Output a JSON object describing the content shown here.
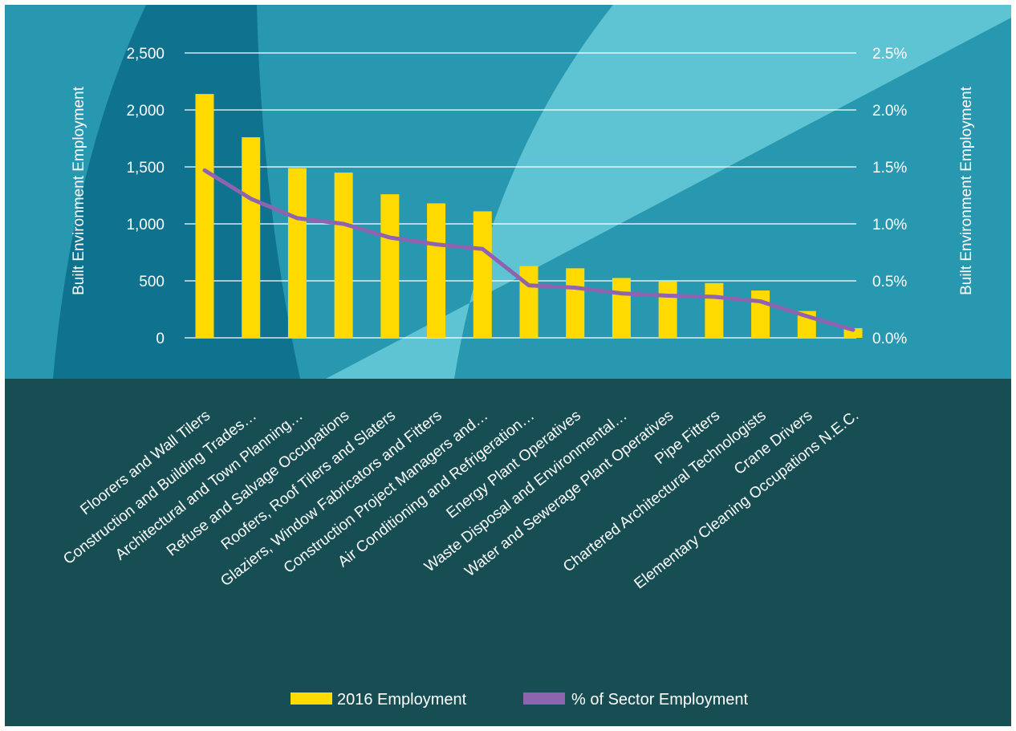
{
  "colors": {
    "plot_background": "#2798B0",
    "lower_background": "#164E54",
    "dark_band": "#0F7390",
    "light_band": "#5EC4D3",
    "bar": "#FFDA00",
    "line": "#8E63B0",
    "gridline": "#FFFFFF",
    "text": "#FFFFFF"
  },
  "chart_data": {
    "type": "bar",
    "categories": [
      "Floorers and Wall Tilers",
      "Construction and Building Trades…",
      "Architectural and Town Planning…",
      "Refuse and Salvage Occupations",
      "Roofers, Roof Tilers and Slaters",
      "Glaziers, Window Fabricators and Fitters",
      "Construction Project Managers and…",
      "Air Conditioning and Refrigeration…",
      "Energy Plant Operatives",
      "Waste Disposal and Environmental…",
      "Water and Sewerage Plant Operatives",
      "Pipe Fitters",
      "Chartered Architectural Technologists",
      "Crane Drivers",
      "Elementary Cleaning Occupations N.E.C."
    ],
    "series": [
      {
        "name": "2016 Employment",
        "type": "bar",
        "axis": "left",
        "values": [
          2140,
          1760,
          1490,
          1450,
          1260,
          1180,
          1110,
          630,
          610,
          525,
          495,
          480,
          415,
          235,
          85
        ]
      },
      {
        "name": "% of Sector Employment",
        "type": "line",
        "axis": "right",
        "values": [
          1.47,
          1.22,
          1.05,
          1.0,
          0.88,
          0.82,
          0.78,
          0.46,
          0.44,
          0.39,
          0.37,
          0.36,
          0.32,
          0.19,
          0.07
        ]
      }
    ],
    "ylabel": "Built Environment Employment",
    "ylabel_right": "Built Environment Employment",
    "ylim": [
      0,
      2500
    ],
    "ylim_right": [
      0,
      2.5
    ],
    "yticks": [
      "0",
      "500",
      "1,000",
      "1,500",
      "2,000",
      "2,500"
    ],
    "yticks_right": [
      "0.0%",
      "0.5%",
      "1.0%",
      "1.5%",
      "2.0%",
      "2.5%"
    ],
    "grid": true,
    "legend_position": "bottom"
  }
}
